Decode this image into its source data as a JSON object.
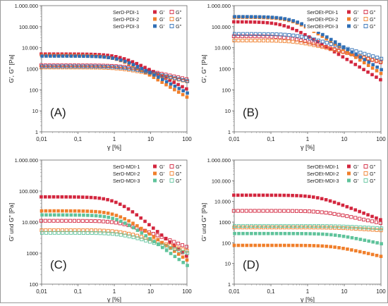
{
  "figure": {
    "colors": {
      "red": "#d3263e",
      "orange": "#f07f2b",
      "blue": "#2f6fb6",
      "green": "#5fc39b",
      "pink": "#e06c8a",
      "gray_axis": "#555555"
    }
  },
  "chart_data": [
    {
      "type": "scatter",
      "panel_label": "(A)",
      "xlabel": "γ [%]",
      "ylabel": "G', G'' [Pa]",
      "xscale": "log",
      "yscale": "log",
      "xlim": [
        0.01,
        100
      ],
      "ylim": [
        1,
        1000000
      ],
      "x_ticks": [
        "0,01",
        "0,1",
        "1",
        "10",
        "100"
      ],
      "y_ticks": [
        "1",
        "10",
        "100",
        "1000",
        "10.000",
        "100.000",
        "1.000.000"
      ],
      "legend_position": "top-right",
      "legend_symbols": [
        "G'",
        "G''"
      ],
      "series": [
        {
          "name": "SerD-PDI-1",
          "color": "#d3263e",
          "Gp_plateau": 5000,
          "Gp_end": 110,
          "Gpp_plateau": 1450,
          "Gpp_end": 320,
          "knee": 1.5
        },
        {
          "name": "SerD-PDI-2",
          "color": "#f07f2b",
          "Gp_plateau": 4300,
          "Gp_end": 45,
          "Gpp_plateau": 1150,
          "Gpp_end": 250,
          "knee": 1.2
        },
        {
          "name": "SerD-PDI-3",
          "color": "#2f6fb6",
          "Gp_plateau": 4000,
          "Gp_end": 70,
          "Gpp_plateau": 1300,
          "Gpp_end": 260,
          "knee": 1.4
        }
      ]
    },
    {
      "type": "scatter",
      "panel_label": "(B)",
      "xlabel": "γ [%]",
      "ylabel": "G', G'' [Pa]",
      "xscale": "log",
      "yscale": "log",
      "xlim": [
        0.01,
        100
      ],
      "ylim": [
        1,
        1000000
      ],
      "x_ticks": [
        "0,01",
        "0,1",
        "1",
        "10",
        "100"
      ],
      "y_ticks": [
        "1",
        "10",
        "100",
        "1000",
        "10.000",
        "100.000",
        "1.000.000"
      ],
      "legend_position": "top-right",
      "legend_symbols": [
        "G'",
        "G''"
      ],
      "series": [
        {
          "name": "SerOEt-PDI-1",
          "color": "#d3263e",
          "Gp_plateau": 170000,
          "Gp_end": 300,
          "Gpp_plateau": 35000,
          "Gpp_end": 2000,
          "knee": 0.25
        },
        {
          "name": "SerOEt-PDI-2",
          "color": "#f07f2b",
          "Gp_plateau": 280000,
          "Gp_end": 600,
          "Gpp_plateau": 22000,
          "Gpp_end": 2200,
          "knee": 0.4
        },
        {
          "name": "SerOEt-PDI-3",
          "color": "#2f6fb6",
          "Gp_plateau": 300000,
          "Gp_end": 900,
          "Gpp_plateau": 45000,
          "Gpp_end": 3000,
          "knee": 0.4
        }
      ]
    },
    {
      "type": "scatter",
      "panel_label": "(C)",
      "xlabel": "γ [%]",
      "ylabel": "G' und G'' [Pa]",
      "xscale": "log",
      "yscale": "log",
      "xlim": [
        0.01,
        100
      ],
      "ylim": [
        100,
        1000000
      ],
      "x_ticks": [
        "0,01",
        "0,1",
        "1",
        "10",
        "100"
      ],
      "y_ticks": [
        "100",
        "1000",
        "10.000",
        "100.000",
        "1.000.000"
      ],
      "legend_position": "top-right",
      "legend_symbols": [
        "G'",
        "G''"
      ],
      "series": [
        {
          "name": "SerD-MDI-1",
          "color": "#d3263e",
          "Gp_plateau": 65000,
          "Gp_end": 800,
          "Gpp_plateau": 11000,
          "Gpp_end": 1600,
          "knee": 1.2
        },
        {
          "name": "SerD-MDI-2",
          "color": "#f07f2b",
          "Gp_plateau": 23000,
          "Gp_end": 600,
          "Gpp_plateau": 5500,
          "Gpp_end": 1200,
          "knee": 1.2
        },
        {
          "name": "SerD-MDI-3",
          "color": "#5fc39b",
          "Gp_plateau": 17000,
          "Gp_end": 400,
          "Gpp_plateau": 4500,
          "Gpp_end": 1000,
          "knee": 1.2
        }
      ]
    },
    {
      "type": "scatter",
      "panel_label": "(D)",
      "xlabel": "γ [%]",
      "ylabel": "G' und G'' [Pa]",
      "xscale": "log",
      "yscale": "log",
      "xlim": [
        0.01,
        100
      ],
      "ylim": [
        1,
        1000000
      ],
      "x_ticks": [
        "0,01",
        "0,1",
        "1",
        "10",
        "100"
      ],
      "y_ticks": [
        "1",
        "10",
        "100",
        "1000",
        "10.000",
        "100.000",
        "1.000.000"
      ],
      "legend_position": "top-right",
      "legend_symbols": [
        "G'",
        "G''"
      ],
      "series": [
        {
          "name": "SerOEt-MDI-1",
          "color": "#d3263e",
          "Gp_plateau": 20000,
          "Gp_end": 1300,
          "Gpp_plateau": 3500,
          "Gpp_end": 900,
          "knee": 2.0
        },
        {
          "name": "SerOEt-MDI-2",
          "color": "#f07f2b",
          "Gp_plateau": 75,
          "Gp_end": 22,
          "Gpp_plateau": 550,
          "Gpp_end": 400,
          "knee": 5.0
        },
        {
          "name": "SerOEt-MDI-3",
          "color": "#5fc39b",
          "Gp_plateau": 280,
          "Gp_end": 90,
          "Gpp_plateau": 650,
          "Gpp_end": 500,
          "knee": 5.0
        }
      ]
    }
  ]
}
